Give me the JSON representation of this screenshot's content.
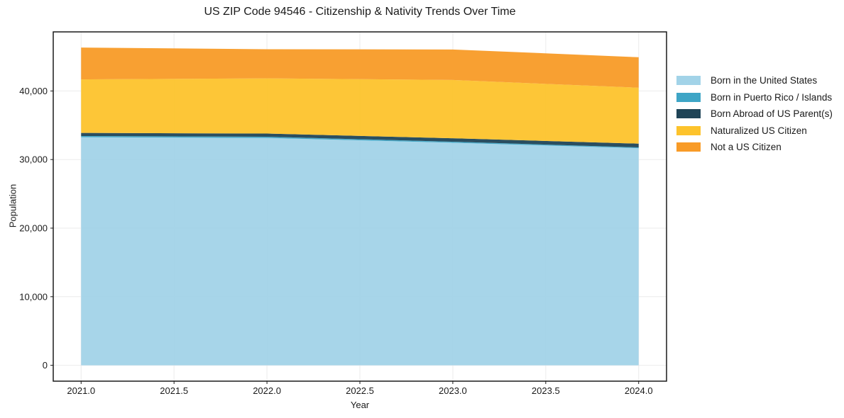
{
  "figure": {
    "title": "US ZIP Code 94546 - Citizenship & Nativity Trends Over Time"
  },
  "chart_data": {
    "type": "area",
    "stacked": true,
    "title": "US ZIP Code 94546 - Citizenship & Nativity Trends Over Time",
    "xlabel": "Year",
    "ylabel": "Population",
    "x": [
      2021,
      2022,
      2023,
      2024
    ],
    "series": [
      {
        "name": "Born in the United States",
        "color": "#a2d3e8",
        "values": [
          33250,
          33150,
          32450,
          31650
        ]
      },
      {
        "name": "Born in Puerto Rico / Islands",
        "color": "#3ea5c6",
        "values": [
          180,
          170,
          150,
          120
        ]
      },
      {
        "name": "Born Abroad of US Parent(s)",
        "color": "#1f4457",
        "values": [
          450,
          470,
          500,
          550
        ]
      },
      {
        "name": "Naturalized US Citizen",
        "color": "#fdc32c",
        "values": [
          7800,
          8050,
          8500,
          8150
        ]
      },
      {
        "name": "Not a US Citizen",
        "color": "#f89b27",
        "values": [
          4650,
          4250,
          4450,
          4450
        ]
      }
    ],
    "totals_by_year": [
      46330,
      46090,
      46050,
      44920
    ],
    "xlim": [
      2020.85,
      2024.15
    ],
    "ylim": [
      -2315,
      48615
    ],
    "xticks": {
      "values": [
        2021.0,
        2021.5,
        2022.0,
        2022.5,
        2023.0,
        2023.5,
        2024.0
      ],
      "labels": [
        "2021.0",
        "2021.5",
        "2022.0",
        "2022.5",
        "2023.0",
        "2023.5",
        "2024.0"
      ]
    },
    "yticks": {
      "values": [
        0,
        10000,
        20000,
        30000,
        40000
      ],
      "labels": [
        "0",
        "10,000",
        "20,000",
        "30,000",
        "40,000"
      ]
    },
    "grid": true,
    "legend_position": "center-right-outside"
  },
  "colors": {
    "grid": "#ebebeb",
    "spine": "#1a1a1a",
    "text": "#1a1a1a",
    "plot_background": "#ffffff"
  }
}
